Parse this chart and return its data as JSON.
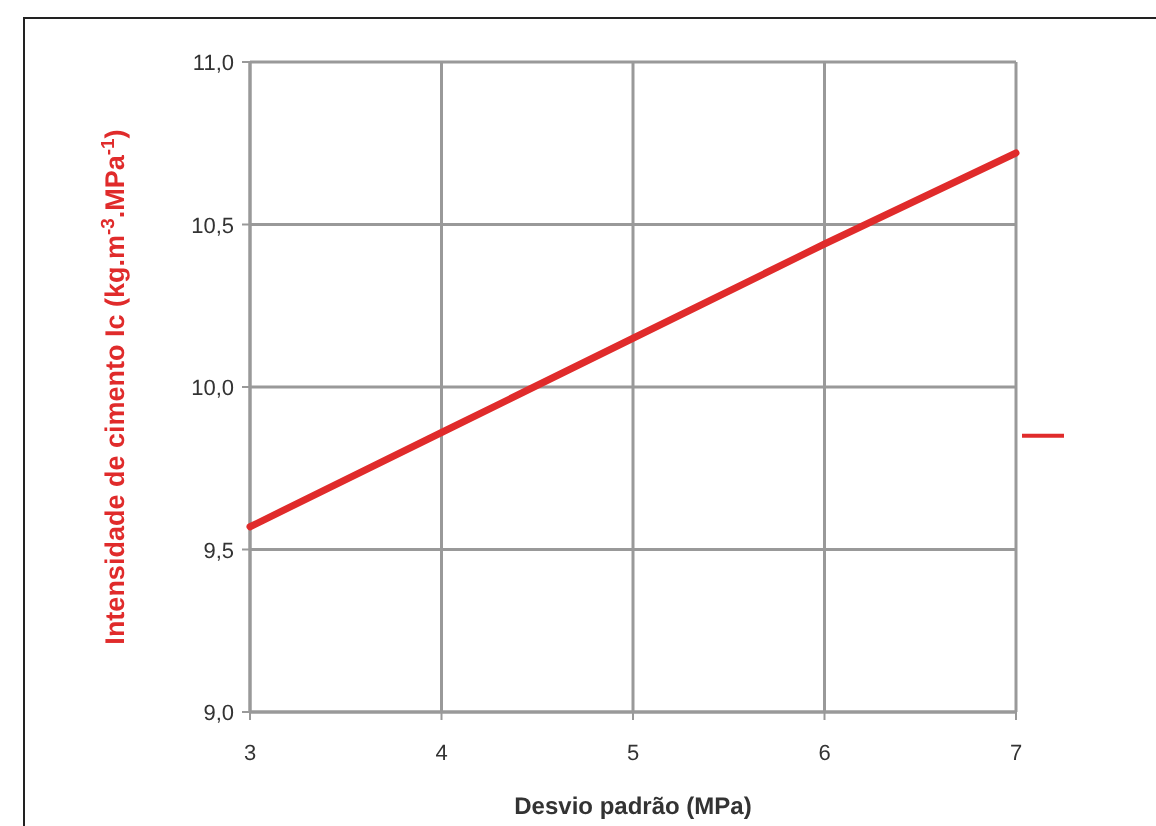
{
  "chart_data": {
    "type": "line",
    "xlabel": "Desvio padrão (MPa)",
    "ylabel": "Intensidade de cimento Ic (kg.m$^{-3}$.MPa$^{-1}$)",
    "x": [
      3,
      4,
      5,
      6,
      7
    ],
    "series": [
      {
        "color": "#e02b2b",
        "values": [
          9.57,
          9.86,
          10.15,
          10.44,
          10.72
        ]
      }
    ],
    "xlim": [
      3,
      7
    ],
    "xticks": [
      3,
      4,
      5,
      6,
      7
    ],
    "ylim": [
      9,
      11
    ],
    "yticks": [
      {
        "value": 9,
        "label": "9,0"
      },
      {
        "value": 9.5,
        "label": "9,5"
      },
      {
        "value": 10,
        "label": "10,0"
      },
      {
        "value": 10.5,
        "label": "10,5"
      },
      {
        "value": 11,
        "label": "11,0"
      }
    ],
    "grid": true,
    "marker": "none",
    "line_style": "solid"
  }
}
